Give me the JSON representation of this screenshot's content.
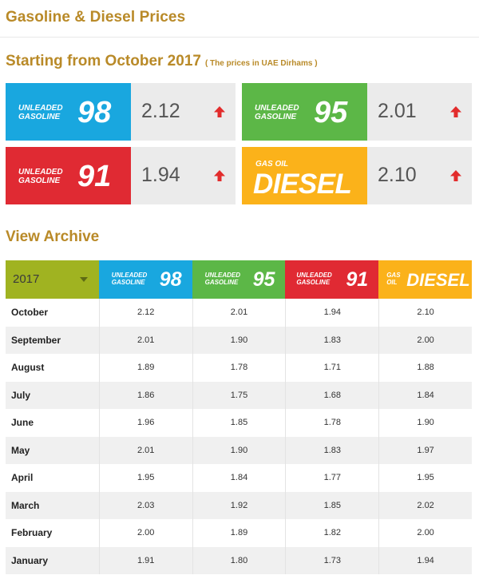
{
  "page": {
    "title": "Gasoline & Diesel Prices",
    "section_title": "Starting from October 2017",
    "currency_note": "( The prices in UAE Dirhams )",
    "archive_title": "View Archive"
  },
  "colors": {
    "accent_gold": "#b98a28",
    "fuel_98": "#19a7df",
    "fuel_95": "#5cb747",
    "fuel_91": "#e02a33",
    "fuel_diesel": "#fbb21a",
    "year_select": "#a0b321",
    "arrow_up": "#e22c2c"
  },
  "fuels": {
    "f98": {
      "line1": "UNLEADED",
      "line2": "GASOLINE",
      "grade": "98"
    },
    "f95": {
      "line1": "UNLEADED",
      "line2": "GASOLINE",
      "grade": "95"
    },
    "f91": {
      "line1": "UNLEADED",
      "line2": "GASOLINE",
      "grade": "91"
    },
    "diesel": {
      "line1": "GAS OIL",
      "line2": "",
      "grade": "DIESEL",
      "th_line1": "GAS",
      "th_line2": "OIL"
    }
  },
  "current_prices": {
    "f98": {
      "value": "2.12",
      "trend": "up-arrow-icon"
    },
    "f95": {
      "value": "2.01",
      "trend": "up-arrow-icon"
    },
    "f91": {
      "value": "1.94",
      "trend": "up-arrow-icon"
    },
    "diesel": {
      "value": "2.10",
      "trend": "up-arrow-icon"
    }
  },
  "archive": {
    "year_selected": "2017",
    "rows": [
      {
        "month": "October",
        "f98": "2.12",
        "f95": "2.01",
        "f91": "1.94",
        "diesel": "2.10"
      },
      {
        "month": "September",
        "f98": "2.01",
        "f95": "1.90",
        "f91": "1.83",
        "diesel": "2.00"
      },
      {
        "month": "August",
        "f98": "1.89",
        "f95": "1.78",
        "f91": "1.71",
        "diesel": "1.88"
      },
      {
        "month": "July",
        "f98": "1.86",
        "f95": "1.75",
        "f91": "1.68",
        "diesel": "1.84"
      },
      {
        "month": "June",
        "f98": "1.96",
        "f95": "1.85",
        "f91": "1.78",
        "diesel": "1.90"
      },
      {
        "month": "May",
        "f98": "2.01",
        "f95": "1.90",
        "f91": "1.83",
        "diesel": "1.97"
      },
      {
        "month": "April",
        "f98": "1.95",
        "f95": "1.84",
        "f91": "1.77",
        "diesel": "1.95"
      },
      {
        "month": "March",
        "f98": "2.03",
        "f95": "1.92",
        "f91": "1.85",
        "diesel": "2.02"
      },
      {
        "month": "February",
        "f98": "2.00",
        "f95": "1.89",
        "f91": "1.82",
        "diesel": "2.00"
      },
      {
        "month": "January",
        "f98": "1.91",
        "f95": "1.80",
        "f91": "1.73",
        "diesel": "1.94"
      }
    ]
  }
}
